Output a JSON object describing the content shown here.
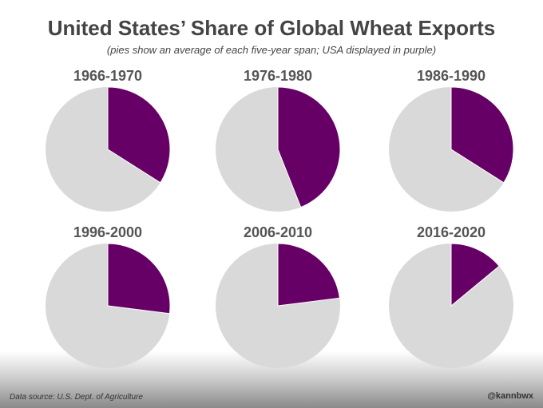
{
  "chart_data": {
    "type": "pie",
    "title": "United States’ Share of Global Wheat Exports",
    "subtitle": "(pies show an average of each five-year span; USA displayed in purple)",
    "series_names": [
      "USA",
      "Rest of world"
    ],
    "colors": {
      "usa": "#660066",
      "rest": "#d9d9d9"
    },
    "pies": [
      {
        "label": "1966-1970",
        "usa_share_pct": 34
      },
      {
        "label": "1976-1980",
        "usa_share_pct": 44
      },
      {
        "label": "1986-1990",
        "usa_share_pct": 34
      },
      {
        "label": "1996-2000",
        "usa_share_pct": 27
      },
      {
        "label": "2006-2010",
        "usa_share_pct": 23
      },
      {
        "label": "2016-2020",
        "usa_share_pct": 14
      }
    ]
  },
  "footer": {
    "source": "Data source: U.S. Dept. of Agriculture",
    "handle": "@kannbwx"
  }
}
